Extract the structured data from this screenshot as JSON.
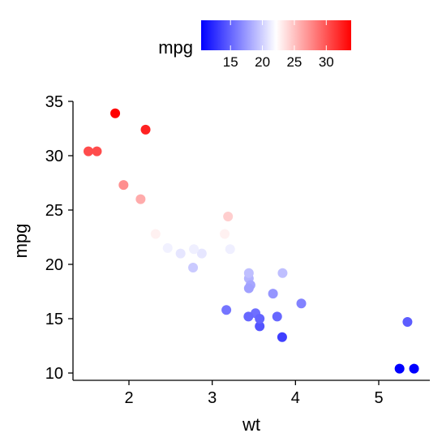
{
  "chart_data": {
    "type": "scatter",
    "title": "",
    "xlabel": "wt",
    "ylabel": "mpg",
    "xlim": [
      1.37,
      5.6
    ],
    "ylim": [
      9.4,
      35.2
    ],
    "x_ticks": [
      2,
      3,
      4,
      5
    ],
    "y_ticks": [
      10,
      15,
      20,
      25,
      30,
      35
    ],
    "grid": false,
    "legend": {
      "title": "mpg",
      "position": "top",
      "type": "colorbar",
      "range": [
        10.4,
        33.9
      ],
      "midpoint": 22.15,
      "ticks": [
        15,
        20,
        25,
        30
      ],
      "low_color": "#0000FF",
      "mid_color": "#FFFFFF",
      "high_color": "#FF0000"
    },
    "points": [
      {
        "x": 2.62,
        "y": 21.0
      },
      {
        "x": 2.875,
        "y": 21.0
      },
      {
        "x": 2.32,
        "y": 22.8
      },
      {
        "x": 3.215,
        "y": 21.4
      },
      {
        "x": 3.44,
        "y": 18.7
      },
      {
        "x": 3.46,
        "y": 18.1
      },
      {
        "x": 3.57,
        "y": 14.3
      },
      {
        "x": 3.19,
        "y": 24.4
      },
      {
        "x": 3.15,
        "y": 22.8
      },
      {
        "x": 3.44,
        "y": 19.2
      },
      {
        "x": 3.44,
        "y": 17.8
      },
      {
        "x": 4.07,
        "y": 16.4
      },
      {
        "x": 3.73,
        "y": 17.3
      },
      {
        "x": 3.78,
        "y": 15.2
      },
      {
        "x": 5.25,
        "y": 10.4
      },
      {
        "x": 5.424,
        "y": 10.4
      },
      {
        "x": 5.345,
        "y": 14.7
      },
      {
        "x": 2.2,
        "y": 32.4
      },
      {
        "x": 1.615,
        "y": 30.4
      },
      {
        "x": 1.835,
        "y": 33.9
      },
      {
        "x": 2.465,
        "y": 21.5
      },
      {
        "x": 3.52,
        "y": 15.5
      },
      {
        "x": 3.435,
        "y": 15.2
      },
      {
        "x": 3.84,
        "y": 13.3
      },
      {
        "x": 3.845,
        "y": 19.2
      },
      {
        "x": 1.935,
        "y": 27.3
      },
      {
        "x": 2.14,
        "y": 26.0
      },
      {
        "x": 1.513,
        "y": 30.4
      },
      {
        "x": 3.17,
        "y": 15.8
      },
      {
        "x": 2.77,
        "y": 19.7
      },
      {
        "x": 3.57,
        "y": 15.0
      },
      {
        "x": 2.78,
        "y": 21.4
      }
    ]
  }
}
